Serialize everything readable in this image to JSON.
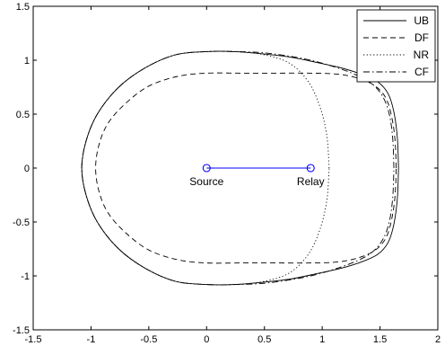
{
  "chart_data": {
    "type": "line",
    "title": "",
    "xlabel": "",
    "ylabel": "",
    "xlim": [
      -1.5,
      2
    ],
    "ylim": [
      -1.5,
      1.5
    ],
    "x_ticks": [
      -1.5,
      -1,
      -0.5,
      0,
      0.5,
      1,
      1.5,
      2
    ],
    "y_ticks": [
      -1.5,
      -1,
      -0.5,
      0,
      0.5,
      1,
      1.5
    ],
    "x_tick_labels": [
      "-1.5",
      "-1",
      "-0.5",
      "0",
      "0.5",
      "1",
      "1.5",
      "2"
    ],
    "y_tick_labels": [
      "-1.5",
      "-1",
      "-0.5",
      "0",
      "0.5",
      "1",
      "1.5"
    ],
    "grid": false,
    "legend": {
      "position": "top-right",
      "entries": [
        "UB",
        "DF",
        "NR",
        "CF"
      ]
    },
    "series": [
      {
        "name": "UB",
        "style": "solid",
        "x": [
          1.66,
          1.65,
          1.62,
          1.57,
          1.48,
          1.34,
          1.16,
          0.95,
          0.72,
          0.48,
          0.24,
          0.0,
          -0.27,
          -0.53,
          -0.76,
          -0.94,
          -1.04,
          -1.08,
          -1.04,
          -0.94,
          -0.76,
          -0.53,
          -0.27,
          0.0,
          0.24,
          0.48,
          0.72,
          0.95,
          1.16,
          1.34,
          1.48,
          1.57,
          1.62,
          1.65,
          1.66
        ],
        "y": [
          0.0,
          0.28,
          0.52,
          0.69,
          0.8,
          0.87,
          0.93,
          0.98,
          1.03,
          1.06,
          1.08,
          1.08,
          1.05,
          0.93,
          0.75,
          0.51,
          0.26,
          0.0,
          -0.26,
          -0.51,
          -0.75,
          -0.93,
          -1.05,
          -1.08,
          -1.08,
          -1.06,
          -1.03,
          -0.98,
          -0.93,
          -0.87,
          -0.8,
          -0.69,
          -0.52,
          -0.28,
          0.0
        ]
      },
      {
        "name": "DF",
        "style": "dashed",
        "x": [
          1.64,
          1.63,
          1.6,
          1.55,
          1.46,
          1.32,
          1.14,
          0.9,
          0.6,
          0.3,
          0.0,
          -0.25,
          -0.5,
          -0.7,
          -0.85,
          -0.93,
          -0.96,
          -0.93,
          -0.85,
          -0.7,
          -0.5,
          -0.25,
          0.0,
          0.3,
          0.6,
          0.9,
          1.14,
          1.32,
          1.46,
          1.55,
          1.6,
          1.63,
          1.64
        ],
        "y": [
          0.0,
          0.26,
          0.48,
          0.65,
          0.76,
          0.83,
          0.87,
          0.88,
          0.88,
          0.88,
          0.88,
          0.85,
          0.76,
          0.6,
          0.42,
          0.22,
          0.0,
          -0.22,
          -0.42,
          -0.6,
          -0.76,
          -0.85,
          -0.88,
          -0.88,
          -0.88,
          -0.88,
          -0.87,
          -0.83,
          -0.76,
          -0.65,
          -0.48,
          -0.26,
          0.0
        ]
      },
      {
        "name": "NR",
        "style": "dotted",
        "x": [
          1.06,
          1.04,
          0.98,
          0.88,
          0.72,
          0.5,
          0.24,
          0.0,
          -0.27,
          -0.53,
          -0.76,
          -0.94,
          -1.04,
          -1.08,
          -1.04,
          -0.94,
          -0.76,
          -0.53,
          -0.27,
          0.0,
          0.24,
          0.5,
          0.72,
          0.88,
          0.98,
          1.04,
          1.06
        ],
        "y": [
          0.0,
          0.3,
          0.57,
          0.8,
          0.97,
          1.05,
          1.08,
          1.08,
          1.05,
          0.93,
          0.75,
          0.51,
          0.26,
          0.0,
          -0.26,
          -0.51,
          -0.75,
          -0.93,
          -1.05,
          -1.08,
          -1.08,
          -1.05,
          -0.97,
          -0.8,
          -0.57,
          -0.3,
          0.0
        ]
      },
      {
        "name": "CF",
        "style": "dashdot",
        "x": [
          1.62,
          1.61,
          1.58,
          1.52,
          1.42,
          1.28,
          1.1,
          0.9,
          0.7,
          0.48,
          0.24,
          0.0,
          -0.27,
          -0.53,
          -0.76,
          -0.94,
          -1.04,
          -1.08,
          -1.04,
          -0.94,
          -0.76,
          -0.53,
          -0.27,
          0.0,
          0.24,
          0.48,
          0.7,
          0.9,
          1.1,
          1.28,
          1.42,
          1.52,
          1.58,
          1.61,
          1.62
        ],
        "y": [
          0.0,
          0.27,
          0.5,
          0.67,
          0.79,
          0.87,
          0.94,
          1.0,
          1.04,
          1.07,
          1.08,
          1.08,
          1.05,
          0.93,
          0.75,
          0.51,
          0.26,
          0.0,
          -0.26,
          -0.51,
          -0.75,
          -0.93,
          -1.05,
          -1.08,
          -1.08,
          -1.07,
          -1.04,
          -1.0,
          -0.94,
          -0.87,
          -0.79,
          -0.67,
          -0.5,
          -0.27,
          0.0
        ]
      }
    ],
    "link": {
      "x": [
        0,
        0.9
      ],
      "y": [
        0,
        0
      ],
      "color": "#0000ff"
    },
    "nodes": [
      {
        "label": "Source",
        "x": 0,
        "y": 0
      },
      {
        "label": "Relay",
        "x": 0.9,
        "y": 0
      }
    ]
  }
}
